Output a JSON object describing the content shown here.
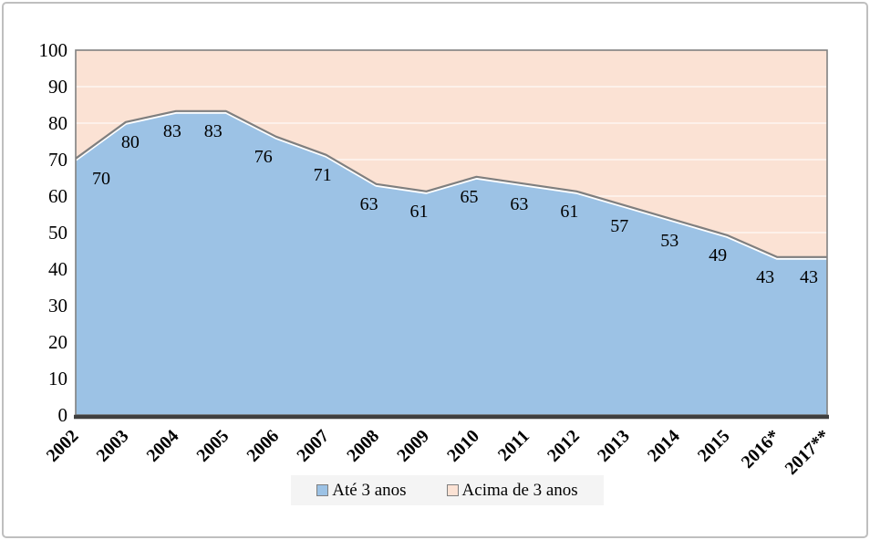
{
  "chart_data": {
    "type": "area",
    "stacked": true,
    "categories": [
      "2002",
      "2003",
      "2004",
      "2005",
      "2006",
      "2007",
      "2008",
      "2009",
      "2010",
      "2011",
      "2012",
      "2013",
      "2014",
      "2015",
      "2016*",
      "2017**"
    ],
    "series": [
      {
        "name": "Até 3 anos",
        "values": [
          70,
          80,
          83,
          83,
          76,
          71,
          63,
          61,
          65,
          63,
          61,
          57,
          53,
          49,
          43,
          43
        ],
        "color": "#9CC2E5"
      },
      {
        "name": "Acima de 3 anos",
        "values": [
          30,
          20,
          17,
          17,
          24,
          29,
          37,
          39,
          35,
          37,
          39,
          43,
          47,
          51,
          57,
          57
        ],
        "color": "#FBE2D4"
      }
    ],
    "data_labels": [
      "70",
      "80",
      "83",
      "83",
      "76",
      "71",
      "63",
      "61",
      "65",
      "63",
      "61",
      "57",
      "53",
      "49",
      "43",
      "43"
    ],
    "title": "",
    "xlabel": "",
    "ylabel": "",
    "ylim": [
      0,
      100
    ],
    "ytick_step": 10,
    "yticks": [
      "0",
      "10",
      "20",
      "30",
      "40",
      "50",
      "60",
      "70",
      "80",
      "90",
      "100"
    ],
    "grid": true,
    "legend_position": "bottom"
  },
  "legend": {
    "items": [
      {
        "label": "Até 3 anos",
        "color": "#9CC2E5"
      },
      {
        "label": "Acima de 3 anos",
        "color": "#FBE2D4"
      }
    ]
  },
  "colors": {
    "series_blue": "#9CC2E5",
    "series_peach": "#FBE2D4",
    "boundary_line": "#7F7F7F",
    "boundary_underline": "#FFFFFF",
    "plot_border": "#808080",
    "axis_line": "#3F3F3F",
    "gridline": "rgba(255,255,255,0.5)",
    "text": "#000000",
    "legend_bg": "#F4F4F4",
    "figure_border": "#BFBFBF"
  }
}
